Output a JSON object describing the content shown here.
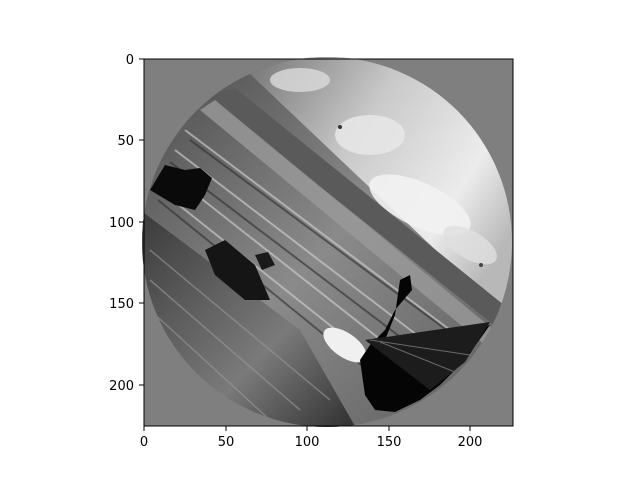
{
  "figure": {
    "background": "#ffffff",
    "image_fill": "#7f7f7f"
  },
  "axes": {
    "x_ticks": [
      "0",
      "50",
      "100",
      "150",
      "200"
    ],
    "y_ticks": [
      "0",
      "50",
      "100",
      "150",
      "200"
    ],
    "xlim": [
      0,
      227
    ],
    "ylim": [
      227,
      0
    ]
  },
  "image": {
    "description_icon": "rotated-grayscale-beach-photo",
    "mask_shape": "circle"
  }
}
